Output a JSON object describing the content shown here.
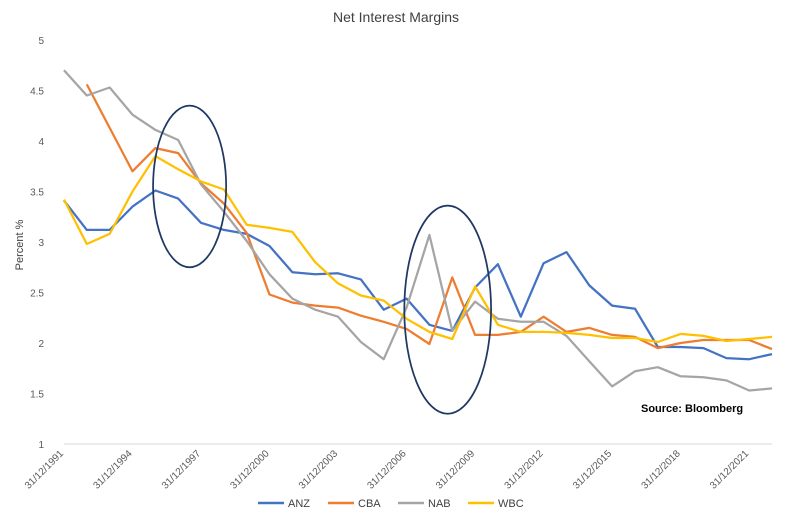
{
  "chart_data": {
    "type": "line",
    "title": "Net Interest  Margins",
    "xlabel": "",
    "ylabel": "Percent %",
    "ylim": [
      1,
      5
    ],
    "yticks": [
      "1",
      "1.5",
      "2",
      "2.5",
      "3",
      "3.5",
      "4",
      "4.5",
      "5"
    ],
    "x": [
      1991,
      1992,
      1993,
      1994,
      1995,
      1996,
      1997,
      1998,
      1999,
      2000,
      2001,
      2002,
      2003,
      2004,
      2005,
      2006,
      2007,
      2008,
      2009,
      2010,
      2011,
      2012,
      2013,
      2014,
      2015,
      2016,
      2017,
      2018,
      2019,
      2020,
      2021,
      2022
    ],
    "xtick_labels": [
      {
        "x": 1991,
        "label": "31/12/1991"
      },
      {
        "x": 1994,
        "label": "31/12/1994"
      },
      {
        "x": 1997,
        "label": "31/12/1997"
      },
      {
        "x": 2000,
        "label": "31/12/2000"
      },
      {
        "x": 2003,
        "label": "31/12/2003"
      },
      {
        "x": 2006,
        "label": "31/12/2006"
      },
      {
        "x": 2009,
        "label": "31/12/2009"
      },
      {
        "x": 2012,
        "label": "31/12/2012"
      },
      {
        "x": 2015,
        "label": "31/12/2015"
      },
      {
        "x": 2018,
        "label": "31/12/2018"
      },
      {
        "x": 2021,
        "label": "31/12/2021"
      }
    ],
    "grid": false,
    "legend": "bottom",
    "series": [
      {
        "name": "ANZ",
        "color": "#4472C4",
        "values": [
          3.41,
          3.12,
          3.12,
          3.35,
          3.51,
          3.43,
          3.19,
          3.12,
          3.08,
          2.96,
          2.7,
          2.68,
          2.69,
          2.63,
          2.33,
          2.44,
          2.18,
          2.12,
          2.55,
          2.78,
          2.26,
          2.79,
          2.9,
          2.57,
          2.37,
          2.34,
          1.96,
          1.96,
          1.95,
          1.85,
          1.84,
          1.89
        ]
      },
      {
        "name": "CBA",
        "color": "#ED7D31",
        "values": [
          null,
          4.56,
          4.13,
          3.7,
          3.93,
          3.88,
          3.58,
          3.38,
          3.09,
          2.48,
          2.4,
          2.37,
          2.35,
          2.27,
          2.21,
          2.14,
          1.99,
          2.65,
          2.08,
          2.08,
          2.11,
          2.26,
          2.11,
          2.15,
          2.08,
          2.06,
          1.95,
          2.0,
          2.03,
          2.03,
          2.03,
          1.94
        ]
      },
      {
        "name": "NAB",
        "color": "#A5A5A5",
        "values": [
          4.7,
          4.45,
          4.53,
          4.26,
          4.11,
          4.01,
          3.57,
          3.3,
          3.01,
          2.68,
          2.44,
          2.33,
          2.26,
          2.01,
          1.84,
          2.35,
          3.07,
          2.12,
          2.41,
          2.24,
          2.21,
          2.21,
          2.07,
          1.82,
          1.57,
          1.72,
          1.76,
          1.67,
          1.66,
          1.63,
          1.53,
          1.55
        ]
      },
      {
        "name": "WBC",
        "color": "#FFC000",
        "values": [
          3.42,
          2.98,
          3.08,
          3.5,
          3.85,
          3.72,
          3.6,
          3.52,
          3.17,
          3.14,
          3.1,
          2.8,
          2.59,
          2.47,
          2.42,
          2.24,
          2.11,
          2.04,
          2.56,
          2.18,
          2.11,
          2.11,
          2.1,
          2.08,
          2.05,
          2.05,
          2.01,
          2.09,
          2.07,
          2.02,
          2.04,
          2.06
        ]
      }
    ],
    "annotations": [
      {
        "type": "ellipse",
        "cx": 1996.5,
        "cy": 3.55,
        "rx": 1.6,
        "ry": 0.8,
        "color": "#1F3864"
      },
      {
        "type": "ellipse",
        "cx": 2007.8,
        "cy": 2.33,
        "rx": 1.9,
        "ry": 1.03,
        "color": "#1F3864"
      }
    ],
    "source_note": "Source: Bloomberg"
  }
}
